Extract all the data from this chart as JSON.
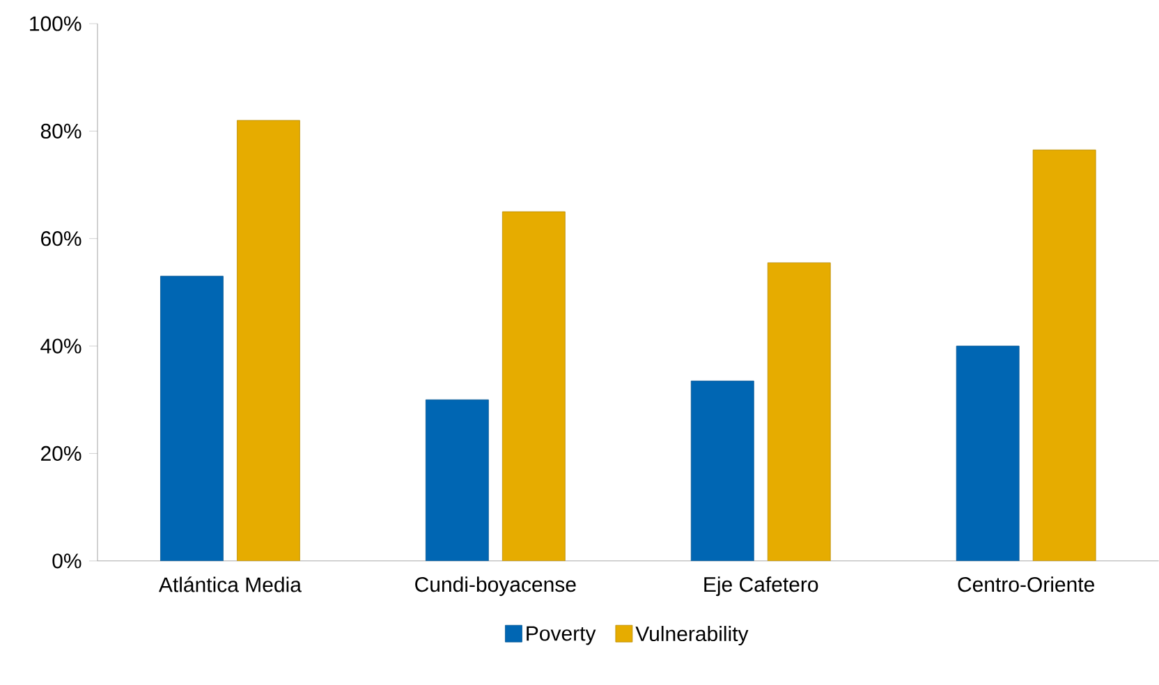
{
  "chart_data": {
    "type": "bar",
    "categories": [
      "Atlántica Media",
      "Cundi-boyacense",
      "Eje Cafetero",
      "Centro-Oriente"
    ],
    "series": [
      {
        "name": "Poverty",
        "color": "#0066b3",
        "values": [
          53,
          30,
          33.5,
          40
        ]
      },
      {
        "name": "Vulnerability",
        "color": "#e6ac00",
        "values": [
          82,
          65,
          55.5,
          76.5
        ]
      }
    ],
    "ylim": [
      0,
      100
    ],
    "yticks": [
      {
        "value": 0,
        "label": "0%"
      },
      {
        "value": 20,
        "label": "20%"
      },
      {
        "value": 40,
        "label": "40%"
      },
      {
        "value": 60,
        "label": "60%"
      },
      {
        "value": 80,
        "label": "80%"
      },
      {
        "value": 100,
        "label": "100%"
      }
    ],
    "legend": "bottom"
  }
}
